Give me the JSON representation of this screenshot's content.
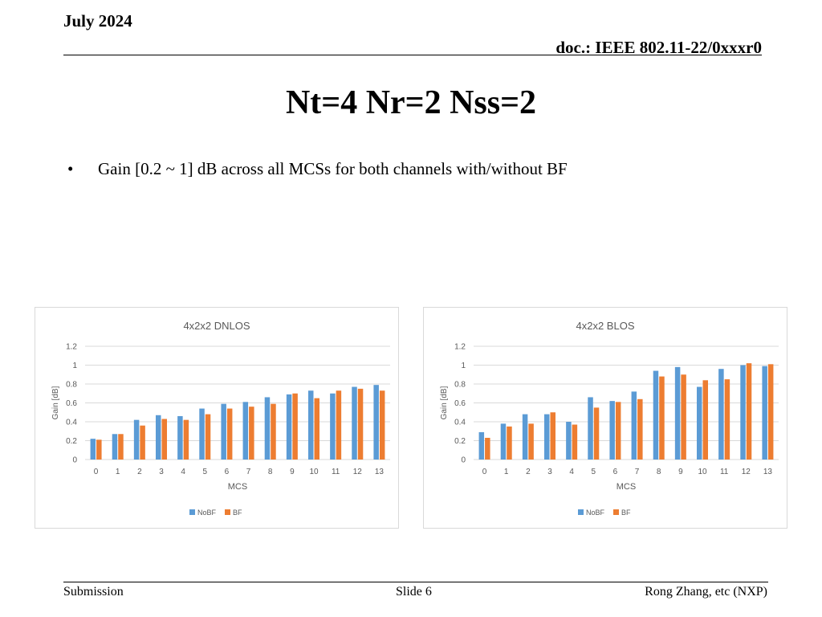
{
  "header": {
    "date": "July 2024",
    "doc_id": "doc.: IEEE 802.11-22/0xxxr0"
  },
  "slide": {
    "title": "Nt=4 Nr=2 Nss=2",
    "bullet_marker": "•",
    "bullet_text": "Gain [0.2 ~ 1] dB across all MCSs for both channels with/without BF"
  },
  "footer": {
    "left": "Submission",
    "center": "Slide 6",
    "right": "Rong Zhang, etc (NXP)"
  },
  "colors": {
    "nobf": "#5b9bd5",
    "bf": "#ed7d31",
    "grid": "#d9d9d9",
    "axis_text": "#595959"
  },
  "chart_data": [
    {
      "type": "bar",
      "title": "4x2x2 DNLOS",
      "xlabel": "MCS",
      "ylabel": "Gain [dB]",
      "ylim": [
        0,
        1.2
      ],
      "yticks": [
        "0",
        "0.2",
        "0.4",
        "0.6",
        "0.8",
        "1",
        "1.2"
      ],
      "grid": true,
      "legend_position": "bottom",
      "categories": [
        "0",
        "1",
        "2",
        "3",
        "4",
        "5",
        "6",
        "7",
        "8",
        "9",
        "10",
        "11",
        "12",
        "13"
      ],
      "series": [
        {
          "name": "NoBF",
          "values": [
            0.22,
            0.27,
            0.42,
            0.47,
            0.46,
            0.54,
            0.59,
            0.61,
            0.66,
            0.69,
            0.73,
            0.7,
            0.77,
            0.79
          ]
        },
        {
          "name": "BF",
          "values": [
            0.21,
            0.27,
            0.36,
            0.43,
            0.42,
            0.48,
            0.54,
            0.56,
            0.59,
            0.7,
            0.65,
            0.73,
            0.75,
            0.73
          ]
        }
      ]
    },
    {
      "type": "bar",
      "title": "4x2x2 BLOS",
      "xlabel": "MCS",
      "ylabel": "Gain [dB]",
      "ylim": [
        0,
        1.2
      ],
      "yticks": [
        "0",
        "0.2",
        "0.4",
        "0.6",
        "0.8",
        "1",
        "1.2"
      ],
      "grid": true,
      "legend_position": "bottom",
      "categories": [
        "0",
        "1",
        "2",
        "3",
        "4",
        "5",
        "6",
        "7",
        "8",
        "9",
        "10",
        "11",
        "12",
        "13"
      ],
      "series": [
        {
          "name": "NoBF",
          "values": [
            0.29,
            0.38,
            0.48,
            0.48,
            0.4,
            0.66,
            0.62,
            0.72,
            0.94,
            0.98,
            0.77,
            0.96,
            1.0,
            0.99
          ]
        },
        {
          "name": "BF",
          "values": [
            0.23,
            0.35,
            0.38,
            0.5,
            0.37,
            0.55,
            0.61,
            0.64,
            0.88,
            0.9,
            0.84,
            0.85,
            1.02,
            1.01
          ]
        }
      ]
    }
  ]
}
